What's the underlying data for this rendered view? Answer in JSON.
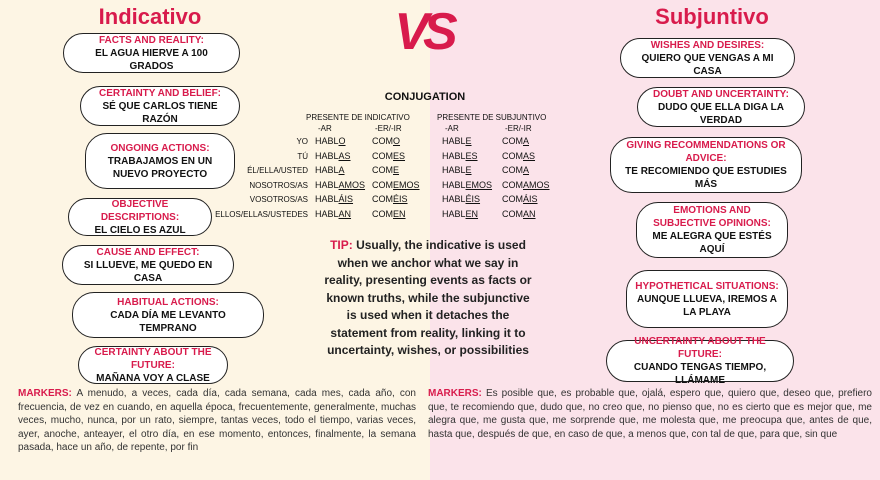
{
  "vs": "VS",
  "indicative": {
    "title": "Indicativo",
    "items": [
      {
        "title": "FACTS AND REALITY:",
        "example": "EL AGUA HIERVE A 100 GRADOS"
      },
      {
        "title": "CERTAINTY AND BELIEF:",
        "example": "SÉ QUE CARLOS TIENE RAZÓN"
      },
      {
        "title": "ONGOING ACTIONS:",
        "example": "TRABAJAMOS EN UN NUEVO PROYECTO"
      },
      {
        "title": "OBJECTIVE DESCRIPTIONS:",
        "example": "EL CIELO ES AZUL"
      },
      {
        "title": "CAUSE AND EFFECT:",
        "example": "SI LLUEVE, ME QUEDO EN CASA"
      },
      {
        "title": "HABITUAL ACTIONS:",
        "example": "CADA DÍA ME LEVANTO TEMPRANO"
      },
      {
        "title": "CERTAINTY ABOUT THE FUTURE:",
        "example": "MAÑANA VOY A CLASE"
      }
    ],
    "markers_label": "MARKERS:",
    "markers": "A menudo, a veces, cada día, cada semana, cada mes, cada año, con frecuencia, de vez en cuando, en aquella época, frecuentemente, generalmente, muchas veces, mucho, nunca, por un rato, siempre, tantas veces, todo el tiempo, varias veces, ayer, anoche, anteayer, el otro día, en ese momento, entonces, finalmente, la semana pasada, hace un año, de repente, por fin"
  },
  "subjunctive": {
    "title": "Subjuntivo",
    "items": [
      {
        "title": "WISHES AND DESIRES:",
        "example": "QUIERO QUE VENGAS A MI CASA"
      },
      {
        "title": "DOUBT AND UNCERTAINTY:",
        "example": "DUDO QUE ELLA DIGA LA VERDAD"
      },
      {
        "title": "GIVING RECOMMENDATIONS OR ADVICE:",
        "example": "TE RECOMIENDO QUE ESTUDIES MÁS"
      },
      {
        "title": "EMOTIONS AND SUBJECTIVE OPINIONS:",
        "example": "ME ALEGRA QUE ESTÉS AQUÍ"
      },
      {
        "title": "HYPOTHETICAL SITUATIONS:",
        "example": "AUNQUE LLUEVA, IREMOS A LA PLAYA"
      },
      {
        "title": "UNCERTAINTY ABOUT THE FUTURE:",
        "example": "CUANDO TENGAS TIEMPO, LLÁMAME"
      }
    ],
    "markers_label": "MARKERS:",
    "markers": "Es posible que, es probable que, ojalá, espero que, quiero que, deseo que, prefiero que, te recomiendo que, dudo que, no creo que, no pienso que, no es cierto que es mejor que, me alegra que, me gusta que, me sorprende que, me molesta que, me preocupa que, antes de que, hasta que, después de que, en caso de que, a menos que, con tal de que, para que, sin que"
  },
  "conjugation": {
    "title": "CONJUGATION",
    "indicative_header": "PRESENTE DE INDICATIVO",
    "subjunctive_header": "PRESENTE DE SUBJUNTIVO",
    "columns": [
      "-AR",
      "-ER/-IR",
      "-AR",
      "-ER/-IR"
    ],
    "rows": [
      {
        "pronoun": "YO",
        "forms": [
          [
            "HABL",
            "O"
          ],
          [
            "COM",
            "O"
          ],
          [
            "HABL",
            "E"
          ],
          [
            "COM",
            "A"
          ]
        ]
      },
      {
        "pronoun": "TÚ",
        "forms": [
          [
            "HABL",
            "AS"
          ],
          [
            "COM",
            "ES"
          ],
          [
            "HABL",
            "ES"
          ],
          [
            "COM",
            "AS"
          ]
        ]
      },
      {
        "pronoun": "ÉL/ELLA/USTED",
        "forms": [
          [
            "HABL",
            "A"
          ],
          [
            "COM",
            "E"
          ],
          [
            "HABL",
            "E"
          ],
          [
            "COM",
            "A"
          ]
        ]
      },
      {
        "pronoun": "NOSOTROS/AS",
        "forms": [
          [
            "HABL",
            "AMOS"
          ],
          [
            "COM",
            "EMOS"
          ],
          [
            "HABL",
            "EMOS"
          ],
          [
            "COM",
            "AMOS"
          ]
        ]
      },
      {
        "pronoun": "VOSOTROS/AS",
        "forms": [
          [
            "HABL",
            "ÁIS"
          ],
          [
            "COM",
            "ÉIS"
          ],
          [
            "HABL",
            "ÉIS"
          ],
          [
            "COM",
            "ÁIS"
          ]
        ]
      },
      {
        "pronoun": "ELLOS/ELLAS/USTEDES",
        "forms": [
          [
            "HABL",
            "AN"
          ],
          [
            "COM",
            "EN"
          ],
          [
            "HABL",
            "EN"
          ],
          [
            "COM",
            "AN"
          ]
        ]
      }
    ]
  },
  "tip": {
    "label": "TIP:",
    "text": "Usually, the indicative is used when we anchor what we say in reality, presenting events as facts or known truths, while the subjunctive is used when it detaches the statement from reality, linking it to uncertainty, wishes, or possibilities"
  }
}
